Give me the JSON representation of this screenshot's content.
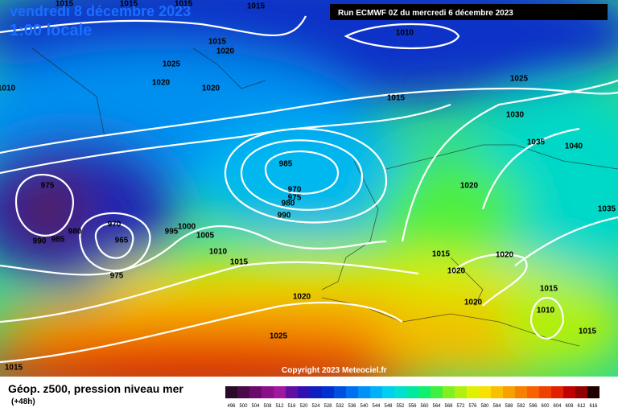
{
  "header": {
    "date": "vendredi 8 décembre 2023",
    "time": "1:00 locale",
    "run": "Run ECMWF 0Z du mercredi 6 décembre 2023",
    "copyright": "Copyright 2023 Meteociel.fr"
  },
  "footer": {
    "title": "Géop. z500, pression niveau mer",
    "lead": "(+48h)"
  },
  "isobar_labels": [
    "1015",
    "1015",
    "1015",
    "1015",
    "1015",
    "1020",
    "1025",
    "1020",
    "1020",
    "1010",
    "1015",
    "1025",
    "1030",
    "1035",
    "1040",
    "1020",
    "1035",
    "985",
    "970",
    "975",
    "980",
    "990",
    "975",
    "990",
    "985",
    "980",
    "970",
    "965",
    "975",
    "995",
    "1000",
    "1005",
    "1010",
    "1015",
    "1015",
    "1020",
    "1020",
    "1020",
    "1015",
    "1010",
    "1015",
    "1020",
    "1025",
    "1015",
    "1010"
  ],
  "legend": {
    "values": [
      496,
      500,
      504,
      508,
      512,
      516,
      520,
      524,
      528,
      532,
      536,
      540,
      544,
      548,
      552,
      556,
      560,
      564,
      568,
      572,
      576,
      580,
      584,
      588,
      592,
      596,
      600,
      604,
      608,
      612,
      616
    ],
    "colors": [
      "#2a0a2a",
      "#4a0a4a",
      "#6a0a6a",
      "#8a108a",
      "#a018a0",
      "#6010a0",
      "#3010b0",
      "#1020c0",
      "#0030d0",
      "#0050e0",
      "#0070f0",
      "#0090f8",
      "#00b0f8",
      "#00d0f0",
      "#00e0d0",
      "#00e8a0",
      "#10f070",
      "#40f040",
      "#80f020",
      "#b0f010",
      "#e0f000",
      "#f8e000",
      "#f8c000",
      "#f8a000",
      "#f88000",
      "#f86000",
      "#f04000",
      "#e02000",
      "#c00000",
      "#900000",
      "#200000"
    ]
  }
}
